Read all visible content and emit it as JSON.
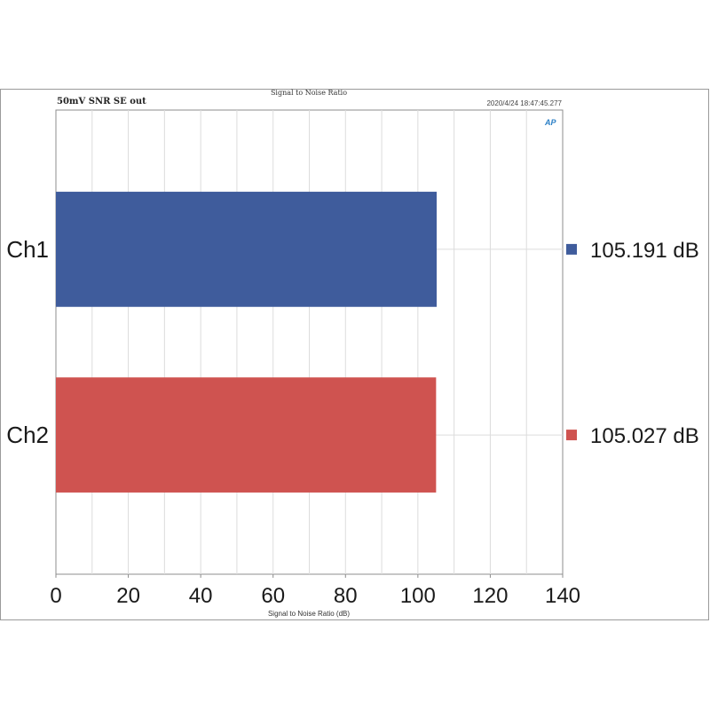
{
  "header": {
    "left_label": "50mV SNR SE out",
    "center_title": "Signal to Noise Ratio",
    "timestamp": "2020/4/24 18:47:45.277",
    "logo": "AP"
  },
  "chart_data": {
    "type": "bar",
    "orientation": "horizontal",
    "title": "Signal to Noise Ratio",
    "xlabel": "Signal to Noise Ratio (dB)",
    "ylabel": "",
    "categories": [
      "Ch1",
      "Ch2"
    ],
    "values": [
      105.191,
      105.027
    ],
    "value_labels": [
      "105.191 dB",
      "105.027 dB"
    ],
    "colors": [
      "#3f5c9c",
      "#cf5350"
    ],
    "xlim": [
      0,
      140
    ],
    "xticks": [
      0,
      20,
      40,
      60,
      80,
      100,
      120,
      140
    ],
    "minor_xticks": [
      10,
      30,
      50,
      70,
      90,
      110,
      130
    ],
    "grid": true,
    "legend_placement": "right"
  }
}
